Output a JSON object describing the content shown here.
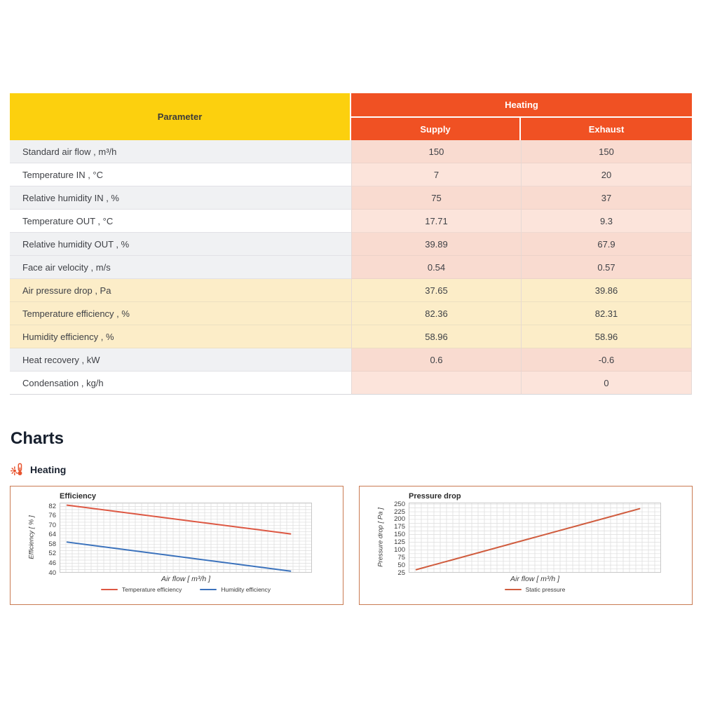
{
  "table": {
    "param_header": "Parameter",
    "group_header": "Heating",
    "sub_headers": [
      "Supply",
      "Exhaust"
    ],
    "rows": [
      {
        "param": "Standard air flow , m³/h",
        "supply": "150",
        "exhaust": "150",
        "bg": "gray"
      },
      {
        "param": "Temperature IN , °C",
        "supply": "7",
        "exhaust": "20",
        "bg": "white"
      },
      {
        "param": "Relative humidity IN , %",
        "supply": "75",
        "exhaust": "37",
        "bg": "gray"
      },
      {
        "param": "Temperature OUT , °C",
        "supply": "17.71",
        "exhaust": "9.3",
        "bg": "white"
      },
      {
        "param": "Relative humidity OUT , %",
        "supply": "39.89",
        "exhaust": "67.9",
        "bg": "gray"
      },
      {
        "param": "Face air velocity , m/s",
        "supply": "0.54",
        "exhaust": "0.57",
        "bg": "gray"
      },
      {
        "param": "Air pressure drop , Pa",
        "supply": "37.65",
        "exhaust": "39.86",
        "bg": "yellow"
      },
      {
        "param": "Temperature efficiency , %",
        "supply": "82.36",
        "exhaust": "82.31",
        "bg": "yellow"
      },
      {
        "param": "Humidity efficiency , %",
        "supply": "58.96",
        "exhaust": "58.96",
        "bg": "yellow"
      },
      {
        "param": "Heat recovery , kW",
        "supply": "0.6",
        "exhaust": "-0.6",
        "bg": "gray"
      },
      {
        "param": "Condensation , kg/h",
        "supply": "",
        "exhaust": "0",
        "bg": "white"
      }
    ]
  },
  "charts_section": {
    "heading": "Charts",
    "group_label": "Heating",
    "group_icon": "thermometer-sun-icon"
  },
  "chart_data": [
    {
      "type": "line",
      "title": "Efficiency",
      "xlabel": "Air flow [ m³/h ]",
      "ylabel": "Efficiency [ % ]",
      "yticks": [
        82,
        76,
        70,
        64,
        58,
        52,
        46,
        40
      ],
      "ylim": [
        40,
        84.4
      ],
      "x_tick_labels": [],
      "grid": true,
      "minor_div": 3,
      "legend_position": "bottom",
      "series": [
        {
          "name": "Temperature efficiency",
          "color": "#dd5742",
          "points": [
            [
              0,
              82.8
            ],
            [
              1,
              64.6
            ]
          ]
        },
        {
          "name": "Humidity efficiency",
          "color": "#3b72bc",
          "points": [
            [
              0,
              59.4
            ],
            [
              1,
              41.0
            ]
          ]
        }
      ]
    },
    {
      "type": "line",
      "title": "Pressure drop",
      "xlabel": "Air flow [ m³/h ]",
      "ylabel": "Pressure drop [ Pa ]",
      "yticks": [
        250,
        225,
        200,
        175,
        150,
        125,
        100,
        75,
        50,
        25
      ],
      "ylim": [
        25,
        255
      ],
      "x_tick_labels": [],
      "grid": true,
      "minor_div": 2,
      "legend_position": "bottom",
      "series": [
        {
          "name": "Static pressure",
          "color": "#d05c3e",
          "points": [
            [
              0,
              35
            ],
            [
              1,
              235
            ]
          ]
        }
      ]
    }
  ],
  "colors": {
    "header_yellow": "#fcd00e",
    "header_orange": "#f05123",
    "row_gray": "#f0f1f3",
    "row_yellow": "#fcedc8",
    "value_pink_dark": "#f9dbd0",
    "value_pink_light": "#fce4db",
    "chart_border": "#c97a52",
    "grid_line": "#dcdcdc"
  }
}
